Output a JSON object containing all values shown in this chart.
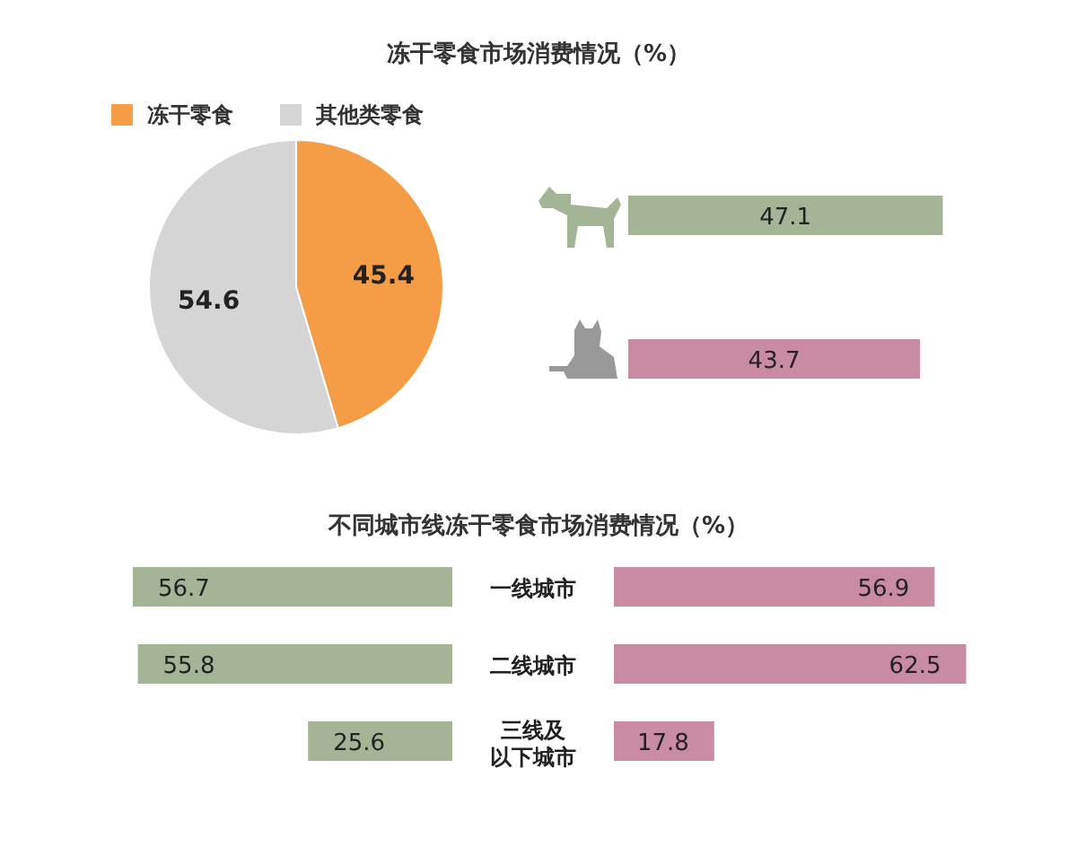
{
  "chart_data": [
    {
      "type": "pie",
      "title": "冻干零食市场消费情况（%）",
      "categories": [
        "冻干零食",
        "其他类零食"
      ],
      "values": [
        45.4,
        54.6
      ],
      "colors": [
        "#f59c47",
        "#d5d5d5"
      ],
      "data_labels": true,
      "legend": "top left"
    },
    {
      "type": "bar",
      "orientation": "horizontal",
      "categories": [
        null,
        null
      ],
      "values": [
        47.1,
        43.7
      ],
      "colors": [
        "#a4b595",
        "#c98aa3"
      ],
      "data_labels": true
    },
    {
      "type": "bar",
      "orientation": "horizontal",
      "title": "不同城市线冻干零食市场消费情况（%）",
      "categories": [
        "一线城市",
        "二线城市",
        "三线及以下城市"
      ],
      "values": [
        56.7,
        55.8,
        25.6
      ],
      "color": "#a4b595",
      "data_labels": true
    },
    {
      "type": "bar",
      "orientation": "horizontal",
      "categories": [
        null,
        null,
        null
      ],
      "values": [
        56.9,
        62.5,
        17.8
      ],
      "color": "#c98aa3",
      "data_labels": true
    }
  ]
}
